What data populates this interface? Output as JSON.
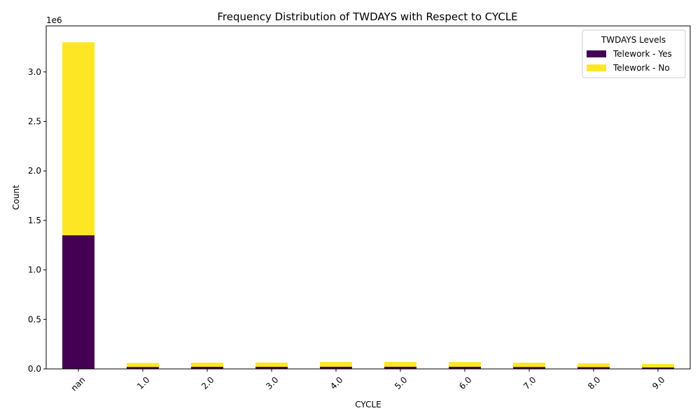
{
  "chart_data": {
    "type": "bar",
    "stacked": true,
    "title": "Frequency Distribution of TWDAYS with Respect to CYCLE",
    "xlabel": "CYCLE",
    "ylabel": "Count",
    "y_offset_label": "1e6",
    "categories": [
      "nan",
      "1.0",
      "2.0",
      "3.0",
      "4.0",
      "5.0",
      "6.0",
      "7.0",
      "8.0",
      "9.0"
    ],
    "series": [
      {
        "name": "Telework - Yes",
        "color": "#440154",
        "values": [
          1350000,
          20000,
          21000,
          21000,
          22000,
          22000,
          22000,
          20000,
          18000,
          15000
        ]
      },
      {
        "name": "Telework - No",
        "color": "#fde725",
        "values": [
          1950000,
          40000,
          42000,
          43000,
          48000,
          48000,
          47000,
          43000,
          38000,
          35000
        ]
      }
    ],
    "ylim": [
      0,
      3465000
    ],
    "yticks": [
      0,
      500000,
      1000000,
      1500000,
      2000000,
      2500000,
      3000000
    ],
    "ytick_labels": [
      "0.0",
      "0.5",
      "1.0",
      "1.5",
      "2.0",
      "2.5",
      "3.0"
    ],
    "legend": {
      "title": "TWDAYS Levels",
      "position": "top-right"
    },
    "grid": false
  }
}
